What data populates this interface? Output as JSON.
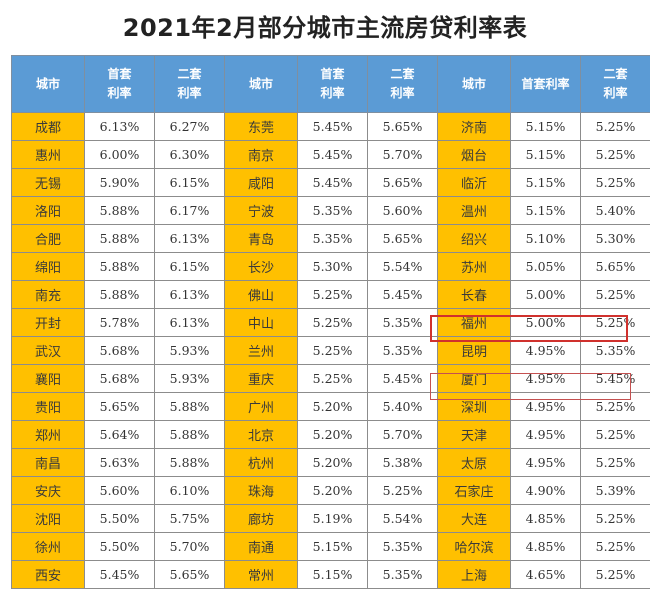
{
  "title": "2021年2月部分城市主流房贷利率表",
  "headers": [
    "城市",
    "首套\n利率",
    "二套\n利率",
    "城市",
    "首套\n利率",
    "二套\n利率",
    "城市",
    "首套利率",
    "二套\n利率"
  ],
  "colors": {
    "header_bg": "#5b9bd5",
    "city_bg": "#ffc000",
    "highlight_border": "#d0312d"
  },
  "highlighted_cities": [
    "福州",
    "厦门"
  ],
  "rows": [
    [
      "成都",
      "6.13%",
      "6.27%",
      "东莞",
      "5.45%",
      "5.65%",
      "济南",
      "5.15%",
      "5.25%"
    ],
    [
      "惠州",
      "6.00%",
      "6.30%",
      "南京",
      "5.45%",
      "5.70%",
      "烟台",
      "5.15%",
      "5.25%"
    ],
    [
      "无锡",
      "5.90%",
      "6.15%",
      "咸阳",
      "5.45%",
      "5.65%",
      "临沂",
      "5.15%",
      "5.25%"
    ],
    [
      "洛阳",
      "5.88%",
      "6.17%",
      "宁波",
      "5.35%",
      "5.60%",
      "温州",
      "5.15%",
      "5.40%"
    ],
    [
      "合肥",
      "5.88%",
      "6.13%",
      "青岛",
      "5.35%",
      "5.65%",
      "绍兴",
      "5.10%",
      "5.30%"
    ],
    [
      "绵阳",
      "5.88%",
      "6.15%",
      "长沙",
      "5.30%",
      "5.54%",
      "苏州",
      "5.05%",
      "5.65%"
    ],
    [
      "南充",
      "5.88%",
      "6.13%",
      "佛山",
      "5.25%",
      "5.45%",
      "长春",
      "5.00%",
      "5.25%"
    ],
    [
      "开封",
      "5.78%",
      "6.13%",
      "中山",
      "5.25%",
      "5.35%",
      "福州",
      "5.00%",
      "5.25%"
    ],
    [
      "武汉",
      "5.68%",
      "5.93%",
      "兰州",
      "5.25%",
      "5.35%",
      "昆明",
      "4.95%",
      "5.35%"
    ],
    [
      "襄阳",
      "5.68%",
      "5.93%",
      "重庆",
      "5.25%",
      "5.45%",
      "厦门",
      "4.95%",
      "5.45%"
    ],
    [
      "贵阳",
      "5.65%",
      "5.88%",
      "广州",
      "5.20%",
      "5.40%",
      "深圳",
      "4.95%",
      "5.25%"
    ],
    [
      "郑州",
      "5.64%",
      "5.88%",
      "北京",
      "5.20%",
      "5.70%",
      "天津",
      "4.95%",
      "5.25%"
    ],
    [
      "南昌",
      "5.63%",
      "5.88%",
      "杭州",
      "5.20%",
      "5.38%",
      "太原",
      "4.95%",
      "5.25%"
    ],
    [
      "安庆",
      "5.60%",
      "6.10%",
      "珠海",
      "5.20%",
      "5.25%",
      "石家庄",
      "4.90%",
      "5.39%"
    ],
    [
      "沈阳",
      "5.50%",
      "5.75%",
      "廊坊",
      "5.19%",
      "5.54%",
      "大连",
      "4.85%",
      "5.25%"
    ],
    [
      "徐州",
      "5.50%",
      "5.70%",
      "南通",
      "5.15%",
      "5.35%",
      "哈尔滨",
      "4.85%",
      "5.25%"
    ],
    [
      "西安",
      "5.45%",
      "5.65%",
      "常州",
      "5.15%",
      "5.35%",
      "上海",
      "4.65%",
      "5.25%"
    ]
  ]
}
